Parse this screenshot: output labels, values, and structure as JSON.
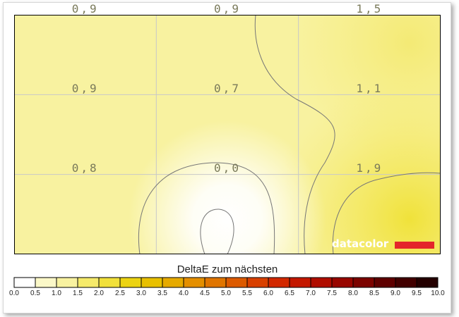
{
  "chart_data": {
    "type": "heatmap",
    "title": "DeltaE zum nächsten",
    "rows": 3,
    "cols": 3,
    "values": [
      [
        0.9,
        0.9,
        1.5
      ],
      [
        0.9,
        0.7,
        1.1
      ],
      [
        0.8,
        0.0,
        1.9
      ]
    ],
    "cell_labels": [
      [
        "0,9",
        "0,9",
        "1,5"
      ],
      [
        "0,9",
        "0,7",
        "1,1"
      ],
      [
        "0,8",
        "0,0",
        "1,9"
      ]
    ],
    "grid": true,
    "colorscale": {
      "ticks": [
        "0.0",
        "0.5",
        "1.0",
        "1.5",
        "2.0",
        "2.5",
        "3.0",
        "3.5",
        "4.0",
        "4.5",
        "5.0",
        "5.5",
        "6.0",
        "6.5",
        "7.0",
        "7.5",
        "8.0",
        "8.5",
        "9.0",
        "9.5",
        "10.0"
      ],
      "range": [
        0,
        10
      ],
      "colors": [
        "#ffffff",
        "#fbf8c8",
        "#f8f2a0",
        "#f5ea6a",
        "#f1e03a",
        "#ecd312",
        "#e8c000",
        "#e6aa00",
        "#e48f00",
        "#e07500",
        "#dc5a00",
        "#d84000",
        "#d22800",
        "#c41800",
        "#b00d00",
        "#980600",
        "#7c0300",
        "#5e0000",
        "#420000",
        "#240000"
      ]
    },
    "logo": {
      "text": "datacolor",
      "bar_color": "#e4262a"
    }
  }
}
